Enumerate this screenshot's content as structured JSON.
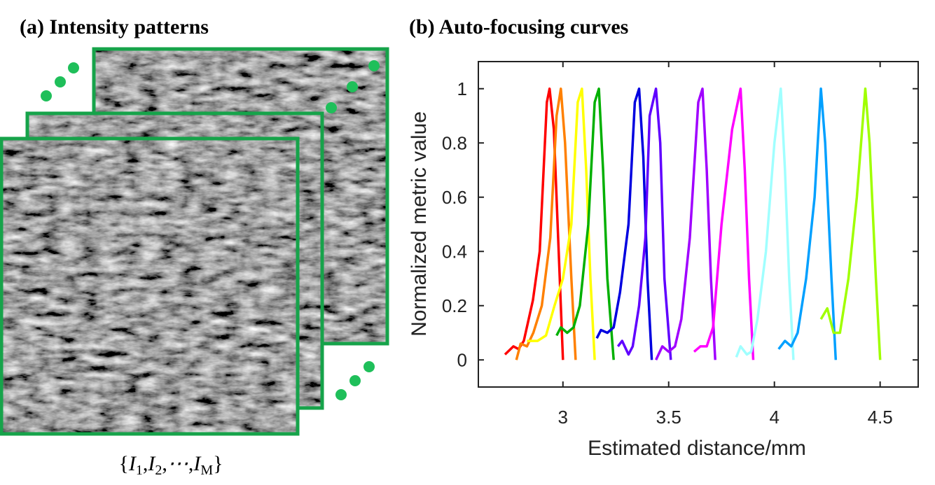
{
  "panel_a": {
    "title": "(a) Intensity patterns",
    "formula": {
      "open": "{",
      "terms": [
        {
          "base": "I",
          "sub": "1"
        },
        {
          "base": "I",
          "sub": "2"
        },
        {
          "base": "⋯"
        },
        {
          "base": "I",
          "sub": "M"
        }
      ],
      "separator": ",",
      "close": "}"
    }
  },
  "chart_data": {
    "type": "line",
    "title": "(b) Auto-focusing curves",
    "xlabel": "Estimated distance/mm",
    "ylabel": "Normalized metric value",
    "xlim": [
      2.6,
      4.68
    ],
    "ylim": [
      -0.1,
      1.1
    ],
    "xticks": [
      3,
      3.5,
      4,
      4.5
    ],
    "yticks": [
      0,
      0.2,
      0.4,
      0.6,
      0.8,
      1
    ],
    "series": [
      {
        "color": "#ff0000",
        "x": [
          2.726,
          2.766,
          2.79,
          2.815,
          2.858,
          2.89,
          2.924,
          2.937,
          2.957,
          2.98,
          3.0
        ],
        "values": [
          0.02,
          0.05,
          0.04,
          0.07,
          0.22,
          0.4,
          0.95,
          1.0,
          0.85,
          0.4,
          0
        ]
      },
      {
        "color": "#ff8000",
        "x": [
          2.78,
          2.8,
          2.83,
          2.86,
          2.9,
          2.94,
          2.97,
          2.99,
          3.01,
          3.04,
          3.06
        ],
        "values": [
          0,
          0.06,
          0.05,
          0.1,
          0.2,
          0.45,
          0.9,
          1.0,
          0.8,
          0.3,
          0
        ]
      },
      {
        "color": "#ffff00",
        "x": [
          2.83,
          2.88,
          2.92,
          2.96,
          3.0,
          3.04,
          3.07,
          3.09,
          3.11,
          3.13,
          3.15
        ],
        "values": [
          0.07,
          0.07,
          0.09,
          0.2,
          0.3,
          0.5,
          0.95,
          1.0,
          0.7,
          0.3,
          0
        ]
      },
      {
        "color": "#00b000",
        "x": [
          2.97,
          2.99,
          3.02,
          3.05,
          3.08,
          3.12,
          3.15,
          3.17,
          3.19,
          3.21,
          3.24
        ],
        "values": [
          0.09,
          0.12,
          0.1,
          0.12,
          0.2,
          0.5,
          0.95,
          1.0,
          0.7,
          0.3,
          0
        ]
      },
      {
        "color": "#0000e0",
        "x": [
          3.16,
          3.18,
          3.21,
          3.24,
          3.27,
          3.31,
          3.34,
          3.36,
          3.38,
          3.4,
          3.42
        ],
        "values": [
          0.08,
          0.11,
          0.1,
          0.12,
          0.25,
          0.5,
          0.95,
          1.0,
          0.75,
          0.3,
          0
        ]
      },
      {
        "color": "#6000ff",
        "x": [
          3.26,
          3.28,
          3.31,
          3.33,
          3.36,
          3.39,
          3.41,
          3.44,
          3.46,
          3.48,
          3.51
        ],
        "values": [
          0.05,
          0.07,
          0.02,
          0.05,
          0.2,
          0.45,
          0.9,
          1.0,
          0.8,
          0.3,
          0
        ]
      },
      {
        "color": "#a000ff",
        "x": [
          3.44,
          3.47,
          3.5,
          3.53,
          3.56,
          3.6,
          3.64,
          3.66,
          3.68,
          3.7,
          3.72
        ],
        "values": [
          0,
          0.05,
          0.03,
          0.05,
          0.15,
          0.45,
          0.95,
          1.0,
          0.7,
          0.3,
          0
        ]
      },
      {
        "color": "#ff00ff",
        "x": [
          3.62,
          3.65,
          3.68,
          3.71,
          3.75,
          3.8,
          3.84,
          3.86,
          3.88,
          3.9
        ],
        "values": [
          0.03,
          0.05,
          0.05,
          0.12,
          0.5,
          0.85,
          1.0,
          0.7,
          0.3,
          0
        ]
      },
      {
        "color": "#a0ffff",
        "x": [
          3.82,
          3.84,
          3.87,
          3.89,
          3.92,
          3.96,
          4.0,
          4.03,
          4.05,
          4.07,
          4.09
        ],
        "values": [
          0.01,
          0.05,
          0.02,
          0.03,
          0.15,
          0.4,
          0.8,
          1.0,
          0.7,
          0.3,
          0
        ]
      },
      {
        "color": "#00a0ff",
        "x": [
          4.02,
          4.05,
          4.08,
          4.11,
          4.15,
          4.19,
          4.22,
          4.24,
          4.27,
          4.29
        ],
        "values": [
          0.04,
          0.07,
          0.05,
          0.1,
          0.3,
          0.6,
          1.0,
          0.8,
          0.3,
          0
        ]
      },
      {
        "color": "#a0ff00",
        "x": [
          4.22,
          4.25,
          4.28,
          4.31,
          4.35,
          4.39,
          4.43,
          4.45,
          4.48,
          4.5
        ],
        "values": [
          0.15,
          0.19,
          0.1,
          0.1,
          0.3,
          0.6,
          1.0,
          0.8,
          0.3,
          0
        ]
      }
    ]
  }
}
